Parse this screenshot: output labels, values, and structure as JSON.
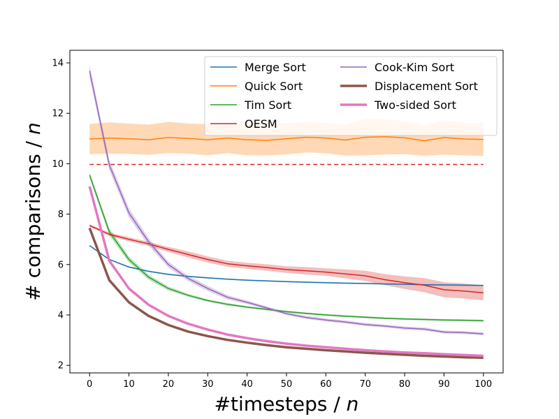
{
  "chart_data": {
    "type": "line",
    "title": "",
    "xlabel": "#timesteps / n",
    "xlabel_parts": [
      "#timesteps / ",
      "n"
    ],
    "ylabel": "# comparisons / n",
    "ylabel_parts": [
      "# comparisons / ",
      "n"
    ],
    "xlim": [
      -5,
      105
    ],
    "ylim": [
      1.7,
      14.5
    ],
    "xticks": [
      0,
      10,
      20,
      30,
      40,
      50,
      60,
      70,
      80,
      90,
      100
    ],
    "yticks": [
      2,
      4,
      6,
      8,
      10,
      12,
      14
    ],
    "grid": false,
    "legend_position": "top-right",
    "legend_columns": 2,
    "x": [
      0,
      5,
      10,
      15,
      20,
      25,
      30,
      35,
      40,
      45,
      50,
      55,
      60,
      65,
      70,
      75,
      80,
      85,
      90,
      95,
      100
    ],
    "series": [
      {
        "name": "Merge Sort",
        "color": "#1f77b4",
        "style": "solid",
        "width": 1.5,
        "values": [
          6.75,
          6.2,
          5.9,
          5.73,
          5.61,
          5.53,
          5.47,
          5.42,
          5.38,
          5.35,
          5.32,
          5.3,
          5.28,
          5.26,
          5.25,
          5.23,
          5.22,
          5.2,
          5.19,
          5.18,
          5.17
        ],
        "band": [
          0.03,
          0.03,
          0.03,
          0.03,
          0.03,
          0.03,
          0.03,
          0.03,
          0.03,
          0.03,
          0.03,
          0.03,
          0.03,
          0.03,
          0.03,
          0.03,
          0.03,
          0.03,
          0.03,
          0.03,
          0.03
        ]
      },
      {
        "name": "Quick Sort",
        "color": "#ff7f0e",
        "style": "solid",
        "width": 1.5,
        "values": [
          10.98,
          11.02,
          10.99,
          10.95,
          11.04,
          11.0,
          10.95,
          11.02,
          10.95,
          10.93,
          10.99,
          11.05,
          11.02,
          10.94,
          11.05,
          11.07,
          11.03,
          10.91,
          11.04,
          10.98,
          10.96
        ],
        "band": [
          0.6,
          0.62,
          0.6,
          0.6,
          0.62,
          0.6,
          0.62,
          0.6,
          0.62,
          0.6,
          0.62,
          0.6,
          0.6,
          0.62,
          0.72,
          0.7,
          0.65,
          0.6,
          0.68,
          0.65,
          0.65
        ]
      },
      {
        "name": "Tim Sort",
        "color": "#2ca02c",
        "style": "solid",
        "width": 1.5,
        "values": [
          9.55,
          7.3,
          6.2,
          5.5,
          5.05,
          4.78,
          4.57,
          4.42,
          4.31,
          4.22,
          4.13,
          4.06,
          4.0,
          3.95,
          3.91,
          3.87,
          3.84,
          3.82,
          3.8,
          3.79,
          3.77
        ],
        "band": [
          0.12,
          0.15,
          0.12,
          0.1,
          0.08,
          0.06,
          0.05,
          0.05,
          0.04,
          0.04,
          0.04,
          0.04,
          0.04,
          0.04,
          0.04,
          0.04,
          0.04,
          0.04,
          0.04,
          0.04,
          0.04
        ]
      },
      {
        "name": "OESM",
        "color": "#d62728",
        "style": "solid",
        "width": 1.5,
        "values": [
          7.55,
          7.2,
          7.0,
          6.82,
          6.6,
          6.4,
          6.2,
          6.03,
          5.95,
          5.88,
          5.8,
          5.75,
          5.7,
          5.63,
          5.55,
          5.4,
          5.28,
          5.18,
          5.0,
          4.95,
          4.88
        ],
        "band": [
          0.05,
          0.07,
          0.08,
          0.08,
          0.1,
          0.12,
          0.12,
          0.12,
          0.12,
          0.13,
          0.13,
          0.15,
          0.15,
          0.18,
          0.2,
          0.22,
          0.25,
          0.28,
          0.3,
          0.3,
          0.3
        ]
      },
      {
        "name": "",
        "color": "#d62728",
        "style": "dashed",
        "width": 1.5,
        "values": [
          9.97,
          9.97,
          9.97,
          9.97,
          9.97,
          9.97,
          9.97,
          9.97,
          9.97,
          9.97,
          9.97,
          9.97,
          9.97,
          9.97,
          9.97,
          9.97,
          9.97,
          9.97,
          9.97,
          9.97,
          9.97
        ]
      },
      {
        "name": "Cook-Kim Sort",
        "color": "#9467bd",
        "style": "solid",
        "width": 1.5,
        "values": [
          13.68,
          9.95,
          8.05,
          6.9,
          6.0,
          5.45,
          5.05,
          4.7,
          4.5,
          4.28,
          4.05,
          3.9,
          3.8,
          3.72,
          3.62,
          3.56,
          3.48,
          3.44,
          3.32,
          3.3,
          3.25
        ],
        "band": [
          0.25,
          0.2,
          0.18,
          0.15,
          0.12,
          0.1,
          0.1,
          0.08,
          0.07,
          0.06,
          0.06,
          0.06,
          0.06,
          0.06,
          0.06,
          0.06,
          0.06,
          0.06,
          0.06,
          0.06,
          0.06
        ]
      },
      {
        "name": "Displacement Sort",
        "color": "#8c564b",
        "style": "solid",
        "width": 3.5,
        "values": [
          7.45,
          5.38,
          4.5,
          3.96,
          3.6,
          3.34,
          3.16,
          3.01,
          2.9,
          2.8,
          2.72,
          2.66,
          2.6,
          2.55,
          2.5,
          2.46,
          2.42,
          2.38,
          2.35,
          2.32,
          2.3
        ],
        "band": [
          0.06,
          0.05,
          0.05,
          0.04,
          0.03,
          0.03,
          0.03,
          0.03,
          0.03,
          0.03,
          0.03,
          0.03,
          0.03,
          0.03,
          0.03,
          0.03,
          0.03,
          0.03,
          0.03,
          0.03,
          0.03
        ]
      },
      {
        "name": "Two-sided Sort",
        "color": "#e377c2",
        "style": "solid",
        "width": 3.5,
        "values": [
          9.1,
          6.15,
          5.05,
          4.4,
          3.96,
          3.65,
          3.42,
          3.22,
          3.08,
          2.96,
          2.86,
          2.78,
          2.72,
          2.66,
          2.6,
          2.55,
          2.51,
          2.48,
          2.44,
          2.41,
          2.38
        ],
        "band": [
          0.08,
          0.07,
          0.06,
          0.05,
          0.04,
          0.04,
          0.03,
          0.03,
          0.03,
          0.03,
          0.03,
          0.03,
          0.03,
          0.03,
          0.03,
          0.03,
          0.03,
          0.03,
          0.03,
          0.03,
          0.03
        ]
      }
    ]
  }
}
